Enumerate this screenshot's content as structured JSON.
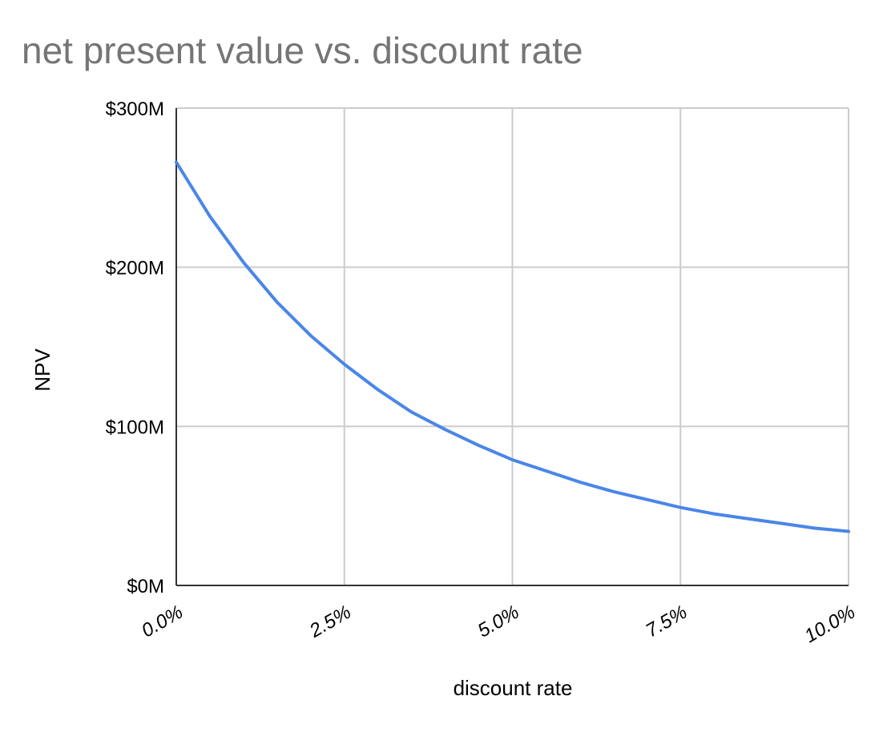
{
  "title": "net present value vs. discount rate",
  "chart_data": {
    "type": "line",
    "title": "net present value vs. discount rate",
    "xlabel": "discount rate",
    "ylabel": "NPV",
    "xlim": [
      0,
      10
    ],
    "ylim": [
      0,
      300
    ],
    "x_ticks": [
      0,
      2.5,
      5,
      7.5,
      10
    ],
    "x_tick_labels": [
      "0.0%",
      "2.5%",
      "5.0%",
      "7.5%",
      "10.0%"
    ],
    "y_ticks": [
      0,
      100,
      200,
      300
    ],
    "y_tick_labels": [
      "$0M",
      "$100M",
      "$200M",
      "$300M"
    ],
    "grid": true,
    "series": [
      {
        "color": "#4a86e8",
        "x": [
          0,
          0.5,
          1,
          1.5,
          2,
          2.5,
          3,
          3.5,
          4,
          4.5,
          5,
          5.5,
          6,
          6.5,
          7,
          7.5,
          8,
          8.5,
          9,
          9.5,
          10
        ],
        "values": [
          266,
          232,
          203,
          178,
          157,
          139,
          123,
          109,
          98,
          88,
          79,
          72,
          65,
          59,
          54,
          49,
          45,
          42,
          39,
          36,
          34
        ]
      }
    ]
  }
}
